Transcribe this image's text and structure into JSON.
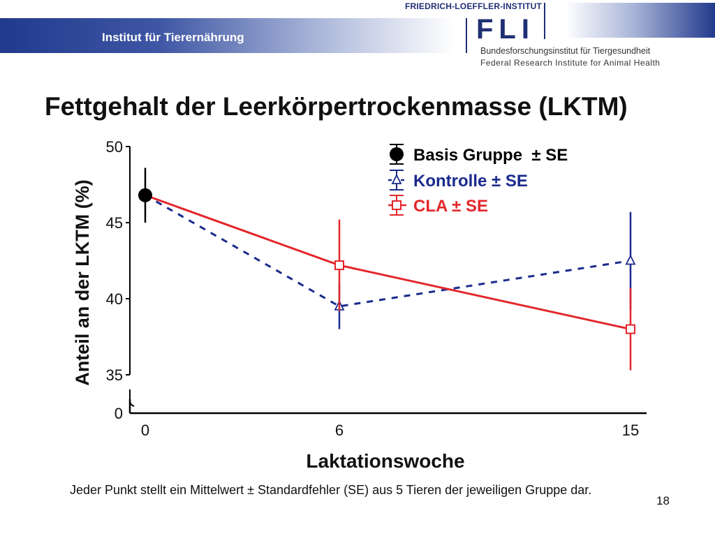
{
  "header": {
    "institute": "Institut für Tierernährung",
    "fli_name": "FRIEDRICH-LOEFFLER-INSTITUT",
    "fli_logo": "FLI",
    "fli_sub_de": "Bundesforschungsinstitut für Tiergesundheit",
    "fli_sub_en": "Federal Research Institute for Animal Health"
  },
  "slide_title": "Fettgehalt der Leerkörpertrockenmasse (LKTM)",
  "footnote": "Jeder Punkt stellt ein Mittelwert ± Standardfehler (SE) aus 5 Tieren der jeweiligen Gruppe dar.",
  "page_number": "18",
  "colors": {
    "basis": "#000000",
    "kontrolle": "#1a2a8c",
    "cla": "#e3262b"
  },
  "chart_data": {
    "type": "line",
    "xlabel": "Laktationswoche",
    "ylabel": "Anteil an der LKTM (%)",
    "x_ticks": [
      "0",
      "6",
      "15"
    ],
    "y_ticks": [
      "50",
      "45",
      "40",
      "35",
      "0"
    ],
    "ylim": [
      35,
      50
    ],
    "y_axis_break": true,
    "legend_position": "top-right",
    "series": [
      {
        "key": "basis",
        "name": "Basis Gruppe  ± SE",
        "marker": "filled-circle",
        "line": "none",
        "points": [
          {
            "x": 0,
            "y": 46.8,
            "se": 1.8
          }
        ]
      },
      {
        "key": "kontrolle",
        "name": "Kontrolle ± SE",
        "marker": "open-triangle",
        "line": "dashed",
        "points": [
          {
            "x": 0,
            "y": 46.8,
            "se": 0
          },
          {
            "x": 6,
            "y": 39.5,
            "se": 1.5
          },
          {
            "x": 15,
            "y": 42.5,
            "se": 3.2
          }
        ]
      },
      {
        "key": "cla",
        "name": "CLA ± SE",
        "marker": "open-square",
        "line": "solid",
        "points": [
          {
            "x": 0,
            "y": 46.8,
            "se": 0
          },
          {
            "x": 6,
            "y": 42.2,
            "se": 3.0
          },
          {
            "x": 15,
            "y": 38.0,
            "se": 2.7
          }
        ]
      }
    ]
  }
}
